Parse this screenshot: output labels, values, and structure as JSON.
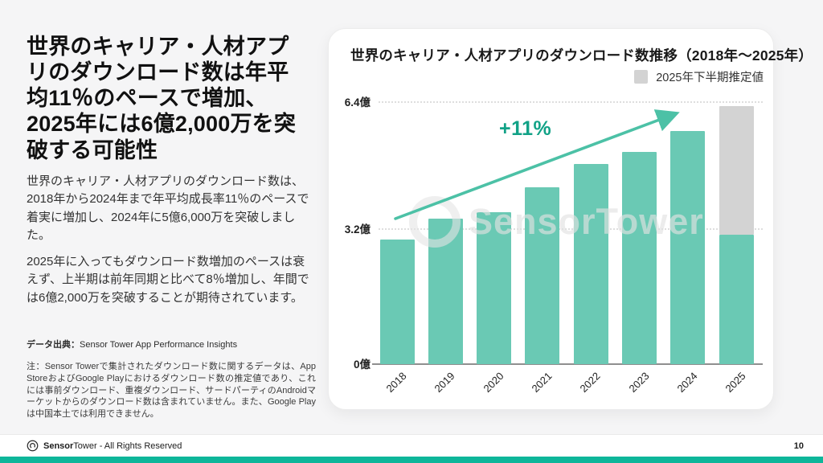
{
  "left": {
    "headline": "世界のキャリア・人材アプリのダウンロード数は年平均11％のペースで増加、2025年には6億2,000万を突破する可能性",
    "paragraph1": "世界のキャリア・人材アプリのダウンロード数は、2018年から2024年まで年平均成長率11％のペースで着実に増加し、2024年に5億6,000万を突破しました。",
    "paragraph2": "2025年に入ってもダウンロード数増加のペースは衰えず、上半期は前年同期と比べて8％増加し、年間では6億2,000万を突破することが期待されています。",
    "source_label": "データ出典：",
    "source_value": "Sensor Tower App Performance Insights",
    "note": "注：Sensor Towerで集計されたダウンロード数に関するデータは、App StoreおよびGoogle Playにおけるダウンロード数の推定値であり、これには事前ダウンロード、重複ダウンロード、サードパーティのAndroidマーケットからのダウンロード数は含まれていません。また、Google Playは中国本土では利用できません。"
  },
  "chart_data": {
    "type": "bar",
    "stacked": true,
    "title": "世界のキャリア・人材アプリのダウンロード数推移（2018年〜2025年）",
    "legend_label": "2025年下半期推定値",
    "legend_position": "top-right",
    "unit": "億",
    "categories": [
      "2018",
      "2019",
      "2020",
      "2021",
      "2022",
      "2023",
      "2024",
      "2025"
    ],
    "series": [
      {
        "name": "ダウンロード数",
        "color": "#6AC9B4",
        "values": [
          3.0,
          3.5,
          3.65,
          4.25,
          4.8,
          5.1,
          5.6,
          3.1
        ]
      },
      {
        "name": "2025年下半期推定値",
        "color": "#D3D3D3",
        "values": [
          0,
          0,
          0,
          0,
          0,
          0,
          0,
          3.1
        ]
      }
    ],
    "yticks": [
      "6.4億",
      "3.2億",
      "0億"
    ],
    "ylim": [
      0,
      6.4
    ],
    "grid": "dotted-horizontal",
    "x_tick_rotation": -45,
    "annotation": "+11%",
    "annotation_color": "#12A287",
    "arrow_color": "#4CC1A6",
    "watermark": "SensorTower"
  },
  "footer": {
    "brand_bold": "Sensor",
    "brand_rest": "Tower",
    "rights": " - All Rights Reserved",
    "page_number": "10"
  }
}
